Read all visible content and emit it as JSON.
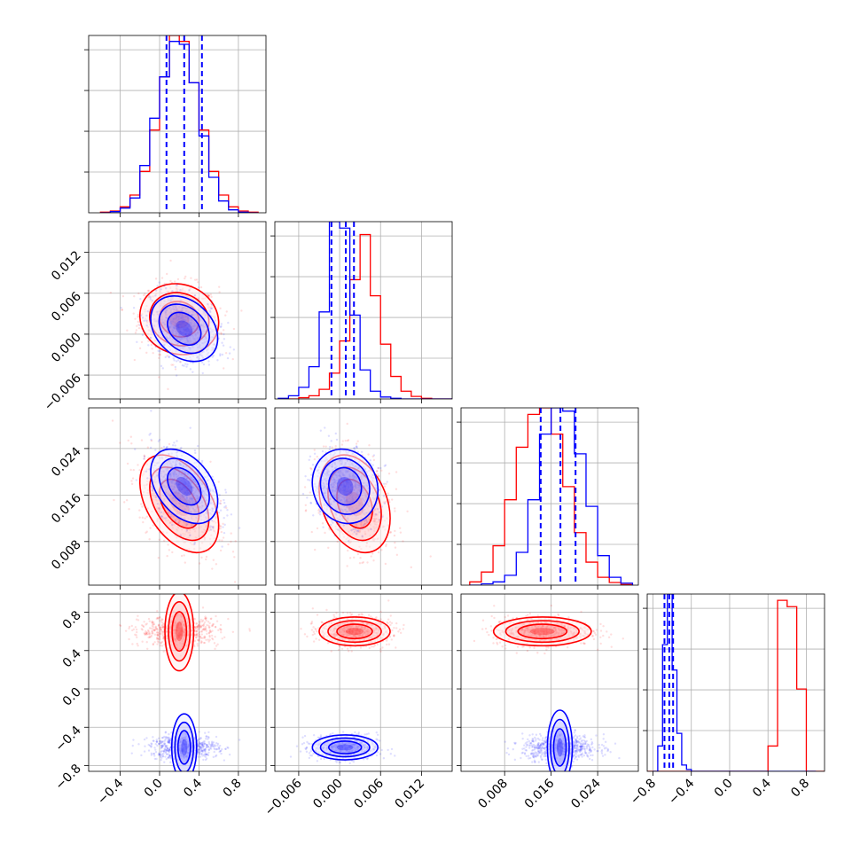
{
  "colors": {
    "series_a": "#ff0000",
    "series_b": "#0000ff",
    "grid": "#b0b0b0",
    "frame": "#000000"
  },
  "chart_data": {
    "type": "corner",
    "grid": true,
    "parameters": [
      {
        "range": [
          -0.72,
          1.08
        ],
        "ticks": [
          {
            "v": -0.4,
            "label": "−0.4"
          },
          {
            "v": 0.0,
            "label": "0.0"
          },
          {
            "v": 0.4,
            "label": "0.4"
          },
          {
            "v": 0.8,
            "label": "0.8"
          }
        ]
      },
      {
        "range": [
          -0.0095,
          0.0165
        ],
        "ticks": [
          {
            "v": -0.006,
            "label": "−0.006"
          },
          {
            "v": 0.0,
            "label": "0.000"
          },
          {
            "v": 0.006,
            "label": "0.006"
          },
          {
            "v": 0.012,
            "label": "0.012"
          }
        ]
      },
      {
        "range": [
          0.0005,
          0.031
        ],
        "ticks": [
          {
            "v": 0.008,
            "label": "0.008"
          },
          {
            "v": 0.016,
            "label": "0.016"
          },
          {
            "v": 0.024,
            "label": "0.024"
          }
        ]
      },
      {
        "range": [
          -0.86,
          0.99
        ],
        "ticks": [
          {
            "v": -0.8,
            "label": "−0.8"
          },
          {
            "v": -0.4,
            "label": "−0.4"
          },
          {
            "v": 0.0,
            "label": "0.0"
          },
          {
            "v": 0.4,
            "label": "0.4"
          },
          {
            "v": 0.8,
            "label": "0.8"
          }
        ]
      }
    ],
    "series": [
      {
        "color_key": "series_a",
        "means": [
          0.2,
          0.0022,
          0.0145,
          0.6
        ],
        "stds": [
          0.2,
          0.0026,
          0.0042,
          0.075
        ],
        "corr": [
          [
            1,
            -0.1,
            -0.45,
            0
          ],
          [
            -0.1,
            1,
            -0.3,
            0
          ],
          [
            -0.45,
            -0.3,
            1,
            0
          ],
          [
            0,
            0,
            0,
            1
          ]
        ],
        "hists": [
          {
            "edges": [
              -0.6,
              -0.5,
              -0.4,
              -0.3,
              -0.2,
              -0.1,
              0.0,
              0.1,
              0.2,
              0.3,
              0.4,
              0.5,
              0.6,
              0.7,
              0.8,
              0.9,
              1.0
            ],
            "counts": [
              1,
              3,
              10,
              30,
              70,
              140,
              230,
              300,
              290,
              220,
              140,
              70,
              30,
              10,
              3,
              1
            ]
          },
          {
            "edges": [
              -0.009,
              -0.0075,
              -0.006,
              -0.0045,
              -0.003,
              -0.0015,
              0.0,
              0.0015,
              0.003,
              0.0045,
              0.006,
              0.0075,
              0.009,
              0.0105,
              0.012,
              0.0135,
              0.015,
              0.0165
            ],
            "counts": [
              0,
              0,
              2,
              5,
              15,
              40,
              90,
              185,
              255,
              160,
              85,
              35,
              12,
              4,
              1,
              0,
              0
            ]
          },
          {
            "edges": [
              0.002,
              0.004,
              0.006,
              0.008,
              0.01,
              0.012,
              0.014,
              0.016,
              0.018,
              0.02,
              0.022,
              0.024,
              0.026,
              0.028,
              0.03
            ],
            "counts": [
              5,
              20,
              60,
              130,
              210,
              260,
              270,
              230,
              150,
              80,
              35,
              12,
              4,
              1
            ]
          },
          {
            "edges": [
              -0.9,
              0.4,
              0.5,
              0.6,
              0.7,
              0.8,
              1.0
            ],
            "counts": [
              0,
              40,
              270,
              260,
              130,
              0
            ]
          }
        ],
        "quantiles": []
      },
      {
        "color_key": "series_b",
        "means": [
          0.25,
          0.0008,
          0.0175,
          -0.61
        ],
        "stds": [
          0.17,
          0.0024,
          0.0032,
          0.065
        ],
        "corr": [
          [
            1,
            -0.3,
            -0.4,
            0
          ],
          [
            -0.3,
            1,
            -0.1,
            0
          ],
          [
            -0.4,
            -0.1,
            1,
            0
          ],
          [
            0,
            0,
            0,
            1
          ]
        ],
        "hists": [
          {
            "edges": [
              -0.6,
              -0.5,
              -0.4,
              -0.3,
              -0.2,
              -0.1,
              0.0,
              0.1,
              0.2,
              0.3,
              0.4,
              0.5,
              0.6,
              0.7,
              0.8,
              0.9,
              1.0
            ],
            "counts": [
              0,
              2,
              8,
              25,
              80,
              160,
              230,
              290,
              285,
              220,
              130,
              60,
              20,
              5,
              1,
              0
            ]
          },
          {
            "edges": [
              -0.009,
              -0.0075,
              -0.006,
              -0.0045,
              -0.003,
              -0.0015,
              0.0,
              0.0015,
              0.003,
              0.0045,
              0.006,
              0.0075,
              0.009,
              0.0105,
              0.012,
              0.0135,
              0.015,
              0.0165
            ],
            "counts": [
              1,
              5,
              18,
              50,
              135,
              275,
              265,
              130,
              45,
              12,
              3,
              1,
              0,
              0,
              0,
              0,
              0
            ]
          },
          {
            "edges": [
              0.002,
              0.004,
              0.006,
              0.008,
              0.01,
              0.012,
              0.014,
              0.016,
              0.018,
              0.02,
              0.022,
              0.024,
              0.026,
              0.028,
              0.03
            ],
            "counts": [
              0,
              2,
              5,
              15,
              50,
              130,
              230,
              270,
              265,
              200,
              120,
              45,
              12,
              3
            ]
          },
          {
            "edges": [
              -0.8,
              -0.75,
              -0.7,
              -0.65,
              -0.6,
              -0.55,
              -0.5,
              -0.45,
              -0.4,
              -0.35,
              0.9
            ],
            "counts": [
              0,
              40,
              200,
              280,
              160,
              60,
              10,
              3,
              0,
              0
            ]
          }
        ],
        "quantiles": [
          [
            0.07,
            0.25,
            0.43
          ],
          [
            -0.0012,
            0.0009,
            0.0021
          ],
          [
            0.0142,
            0.0176,
            0.0202
          ],
          [
            -0.68,
            -0.63,
            -0.59
          ]
        ]
      }
    ]
  }
}
